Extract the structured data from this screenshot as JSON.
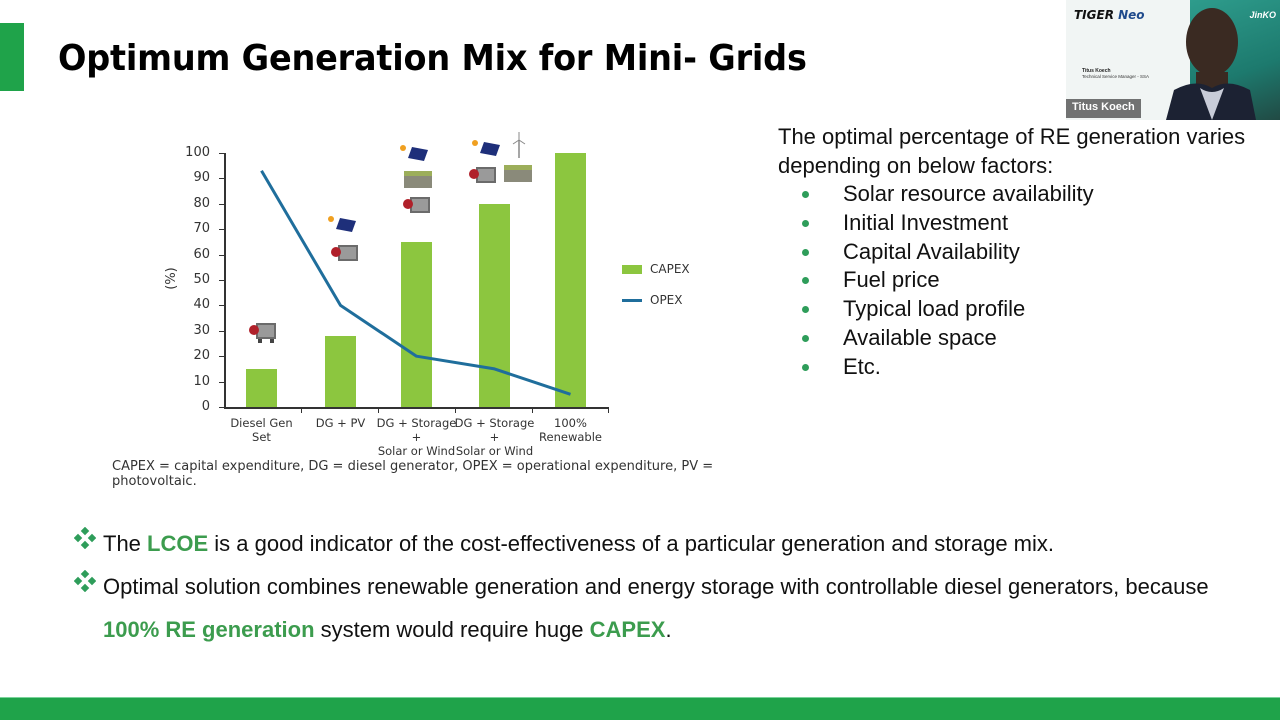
{
  "slide": {
    "title": "Optimum Generation Mix for Mini- Grids",
    "accent_color": "#1fa34a",
    "highlight_color": "#3c9c4e"
  },
  "chart_data": {
    "type": "bar",
    "title": "",
    "xlabel": "",
    "ylabel": "(%)",
    "ylim": [
      0,
      100
    ],
    "yticks": [
      0,
      10,
      20,
      30,
      40,
      50,
      60,
      70,
      80,
      90,
      100
    ],
    "grid": false,
    "legend_position": "right",
    "categories": [
      "Diesel Gen Set",
      "DG + PV",
      "DG + Storage + Solar or Wind",
      "DG + Storage + Solar or Wind",
      "100% Renewable"
    ],
    "category_lines": [
      [
        "Diesel Gen Set",
        ""
      ],
      [
        "DG + PV",
        ""
      ],
      [
        "DG + Storage +",
        "Solar or Wind"
      ],
      [
        "DG + Storage +",
        "Solar or Wind"
      ],
      [
        "100%",
        "Renewable"
      ]
    ],
    "series": [
      {
        "name": "CAPEX",
        "type": "bar",
        "color": "#8cc63f",
        "values": [
          15,
          28,
          65,
          80,
          100
        ]
      },
      {
        "name": "OPEX",
        "type": "line",
        "color": "#1f6e9c",
        "values": [
          93,
          40,
          20,
          15,
          5
        ]
      }
    ],
    "legend": [
      "CAPEX",
      "OPEX"
    ],
    "caption": "CAPEX = capital expenditure, DG = diesel generator, OPEX = operational expenditure, PV = photovoltaic.",
    "pictograms": [
      [
        "diesel-generator"
      ],
      [
        "solar-panel",
        "diesel-generator"
      ],
      [
        "solar-panel",
        "battery",
        "diesel-generator"
      ],
      [
        "solar-panel",
        "wind-turbine",
        "diesel-generator",
        "battery"
      ],
      []
    ]
  },
  "factors": {
    "intro": "The optimal percentage of RE generation varies depending on below factors:",
    "items": [
      "Solar resource availability",
      "Initial Investment",
      "Capital Availability",
      "Fuel price",
      "Typical load profile",
      "Available space",
      "Etc."
    ]
  },
  "points": [
    {
      "parts": [
        {
          "text": "The ",
          "hl": false
        },
        {
          "text": "LCOE",
          "hl": true
        },
        {
          "text": " is a good indicator of the cost-effectiveness of a particular generation and storage mix.",
          "hl": false
        }
      ]
    },
    {
      "parts": [
        {
          "text": "Optimal solution combines renewable generation and energy storage with controllable diesel generators, because ",
          "hl": false
        },
        {
          "text": "100% RE generation",
          "hl": true
        },
        {
          "text": " system would require huge ",
          "hl": false
        },
        {
          "text": "CAPEX",
          "hl": true
        },
        {
          "text": ".",
          "hl": false
        }
      ]
    }
  ],
  "webcam": {
    "brand": "TIGER",
    "brand_suffix": "Neo",
    "brand_right": "JinKO",
    "presenter_name": "Titus Koech",
    "presenter_role": "Technical Service Manager - SSA",
    "nameplate": "Titus Koech"
  }
}
